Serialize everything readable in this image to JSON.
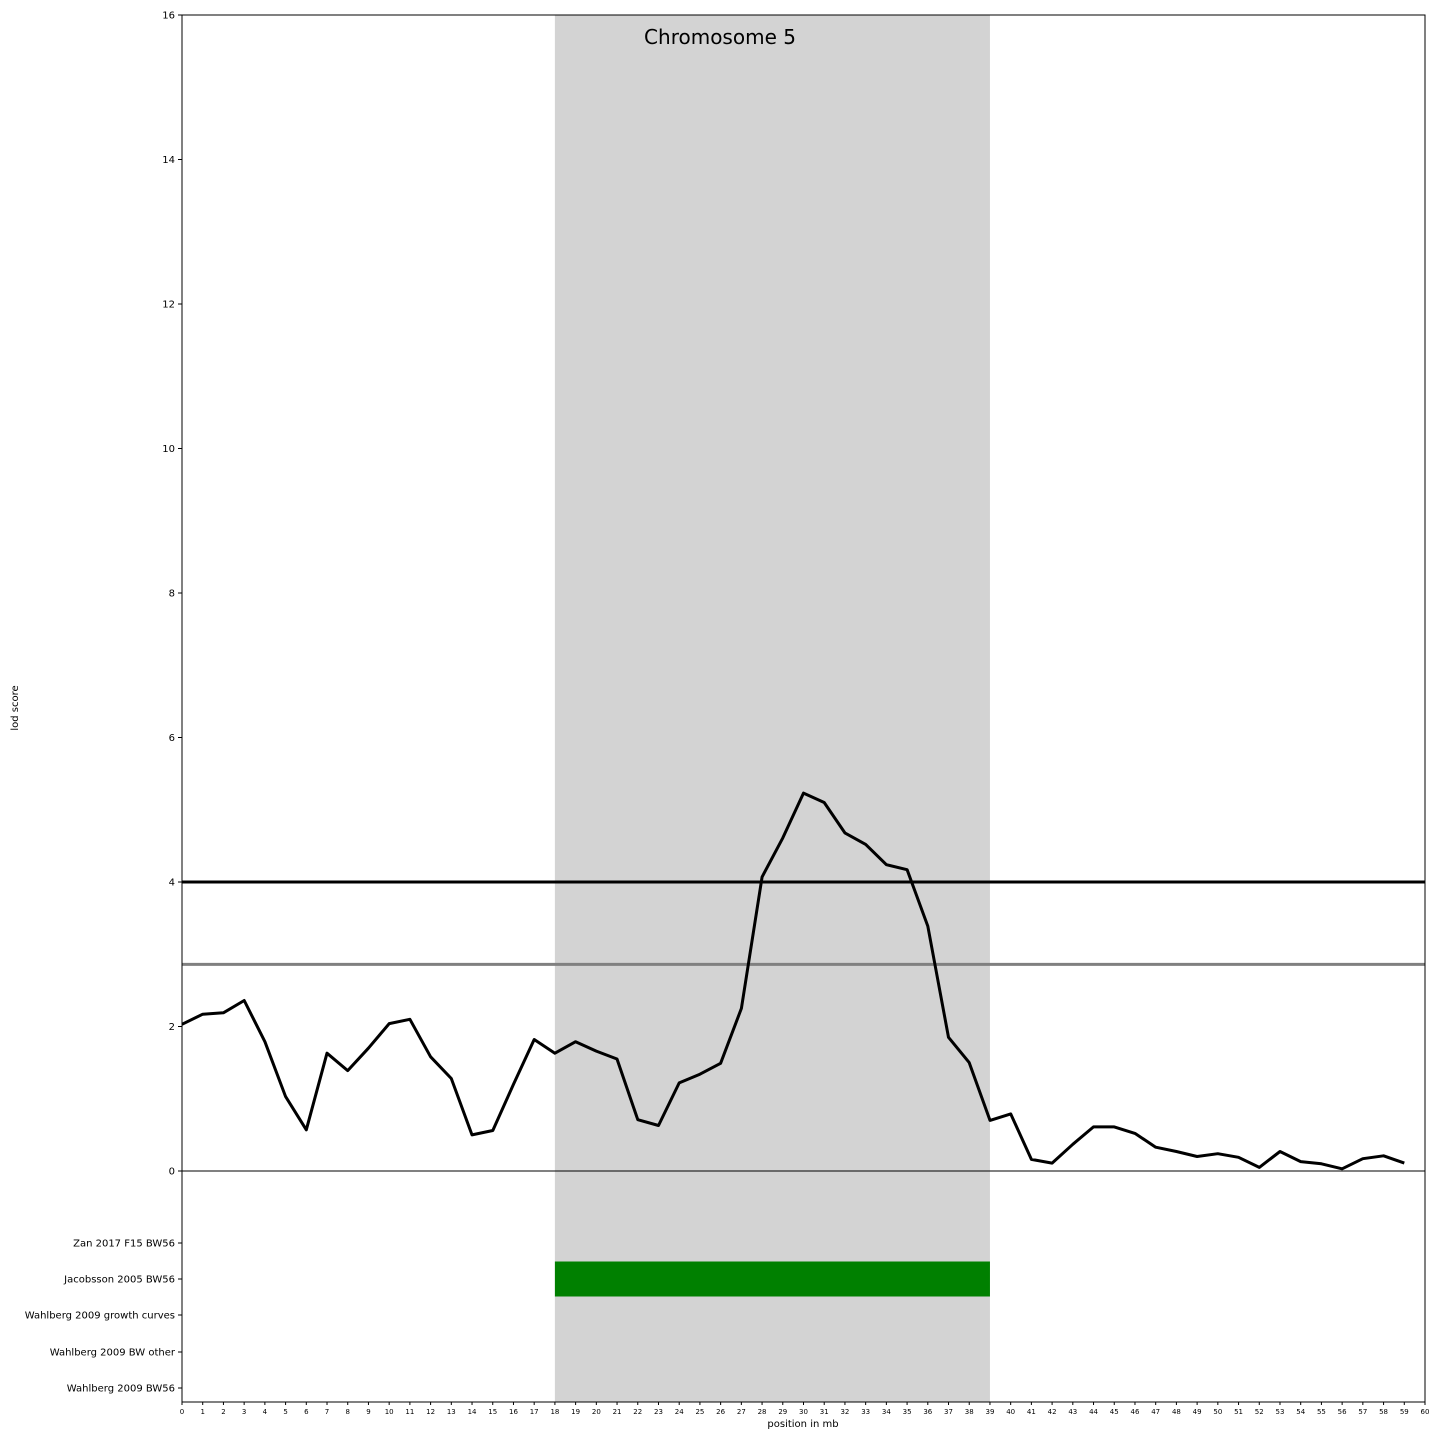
{
  "chart_data": {
    "type": "line",
    "title": "Chromosome 5",
    "xlabel": "position in mb",
    "ylabel": "lod score",
    "xlim": [
      0,
      60
    ],
    "ylim": [
      0,
      16
    ],
    "xticks": [
      0,
      1,
      2,
      3,
      4,
      5,
      6,
      7,
      8,
      9,
      10,
      11,
      12,
      13,
      14,
      15,
      16,
      17,
      18,
      19,
      20,
      21,
      22,
      23,
      24,
      25,
      26,
      27,
      28,
      29,
      30,
      31,
      32,
      33,
      34,
      35,
      36,
      37,
      38,
      39,
      40,
      41,
      42,
      43,
      44,
      45,
      46,
      47,
      48,
      49,
      50,
      51,
      52,
      53,
      54,
      55,
      56,
      57,
      58,
      59,
      60
    ],
    "yticks": [
      0,
      2,
      4,
      6,
      8,
      10,
      12,
      14,
      16
    ],
    "grid": false,
    "highlight_region": {
      "x_start": 18,
      "x_end": 39,
      "color": "#d3d3d3"
    },
    "thresholds": [
      {
        "y": 4.0,
        "color": "#000000"
      },
      {
        "y": 2.86,
        "color": "#808080"
      }
    ],
    "series": [
      {
        "color": "#000000",
        "x": [
          0,
          1,
          2,
          3,
          4,
          5,
          6,
          7,
          8,
          9,
          10,
          11,
          12,
          13,
          14,
          15,
          16,
          17,
          18,
          19,
          20,
          21,
          22,
          23,
          24,
          25,
          26,
          27,
          28,
          29,
          30,
          31,
          32,
          33,
          34,
          35,
          36,
          37,
          38,
          39,
          40,
          41,
          42,
          43,
          44,
          45,
          46,
          47,
          48,
          49,
          50,
          51,
          52,
          53,
          54,
          55,
          56,
          57,
          58,
          59
        ],
        "values": [
          2.03,
          2.17,
          2.19,
          2.36,
          1.79,
          1.03,
          0.57,
          1.63,
          1.39,
          1.7,
          2.04,
          2.1,
          1.58,
          1.28,
          0.5,
          0.56,
          1.2,
          1.82,
          1.63,
          1.79,
          1.66,
          1.55,
          0.71,
          0.63,
          1.22,
          1.34,
          1.49,
          2.25,
          4.07,
          4.61,
          5.23,
          5.1,
          4.68,
          4.52,
          4.24,
          4.17,
          3.39,
          1.85,
          1.5,
          0.7,
          0.79,
          0.16,
          0.11,
          0.37,
          0.61,
          0.61,
          0.52,
          0.33,
          0.27,
          0.2,
          0.24,
          0.19,
          0.05,
          0.27,
          0.13,
          0.1,
          0.03,
          0.17,
          0.21,
          0.11
        ]
      }
    ],
    "tracks": [
      {
        "label": "Zan 2017 F15 BW56",
        "intervals": []
      },
      {
        "label": "Jacobsson 2005 BW56",
        "intervals": [
          {
            "start": 18,
            "end": 39,
            "color": "#008000"
          }
        ]
      },
      {
        "label": "Wahlberg 2009 growth curves",
        "intervals": []
      },
      {
        "label": "Wahlberg 2009 BW other",
        "intervals": []
      },
      {
        "label": "Wahlberg 2009 BW56",
        "intervals": []
      }
    ]
  }
}
